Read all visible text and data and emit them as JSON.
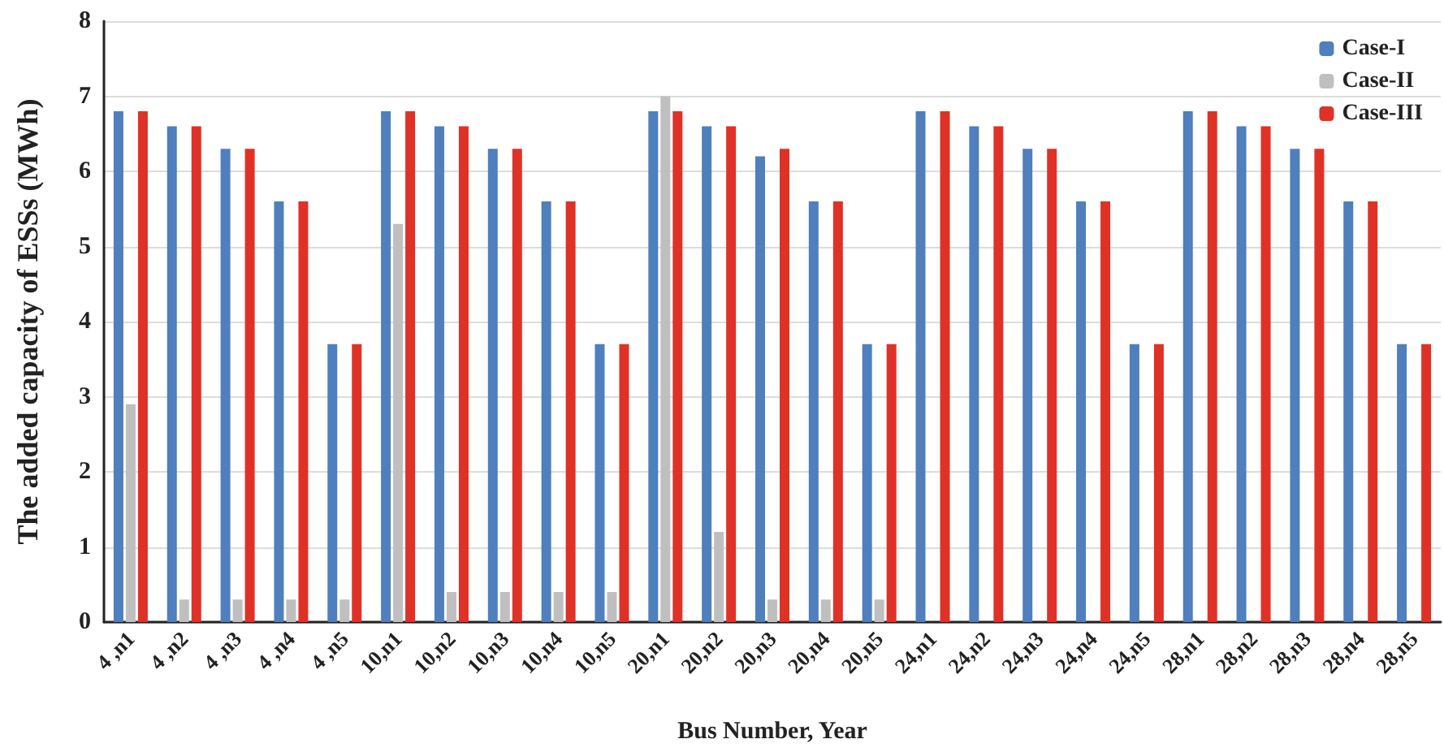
{
  "chart_data": {
    "type": "bar",
    "xlabel": "Bus Number, Year",
    "ylabel": "The added capacity of ESSs (MWh)",
    "categories": [
      "4 ,n1",
      "4 ,n2",
      "4 ,n3",
      "4 ,n4",
      "4 ,n5",
      "10,n1",
      "10,n2",
      "10,n3",
      "10,n4",
      "10,n5",
      "20,n1",
      "20,n2",
      "20,n3",
      "20,n4",
      "20,n5",
      "24,n1",
      "24,n2",
      "24,n3",
      "24,n4",
      "24,n5",
      "28,n1",
      "28,n2",
      "28,n3",
      "28,n4",
      "28,n5"
    ],
    "series": [
      {
        "name": "Case-I",
        "color": "#4f7fbd",
        "values": [
          6.8,
          6.6,
          6.3,
          5.6,
          3.7,
          6.8,
          6.6,
          6.3,
          5.6,
          3.7,
          6.8,
          6.6,
          6.2,
          5.6,
          3.7,
          6.8,
          6.6,
          6.3,
          5.6,
          3.7,
          6.8,
          6.6,
          6.3,
          5.6,
          3.7
        ]
      },
      {
        "name": "Case-II",
        "color": "#bfbfbf",
        "values": [
          2.9,
          0.3,
          0.3,
          0.3,
          0.3,
          5.3,
          0.4,
          0.4,
          0.4,
          0.4,
          7.0,
          1.2,
          0.3,
          0.3,
          0.3,
          null,
          null,
          null,
          null,
          null,
          null,
          null,
          null,
          null,
          null
        ]
      },
      {
        "name": "Case-III",
        "color": "#e03127",
        "values": [
          6.8,
          6.6,
          6.3,
          5.6,
          3.7,
          6.8,
          6.6,
          6.3,
          5.6,
          3.7,
          6.8,
          6.6,
          6.3,
          5.6,
          3.7,
          6.8,
          6.6,
          6.3,
          5.6,
          3.7,
          6.8,
          6.6,
          6.3,
          5.6,
          3.7
        ]
      }
    ],
    "ylim": [
      0,
      8
    ],
    "yticks": [
      0,
      1,
      2,
      3,
      4,
      5,
      6,
      7,
      8
    ],
    "grid": "y",
    "legend": "top right"
  }
}
